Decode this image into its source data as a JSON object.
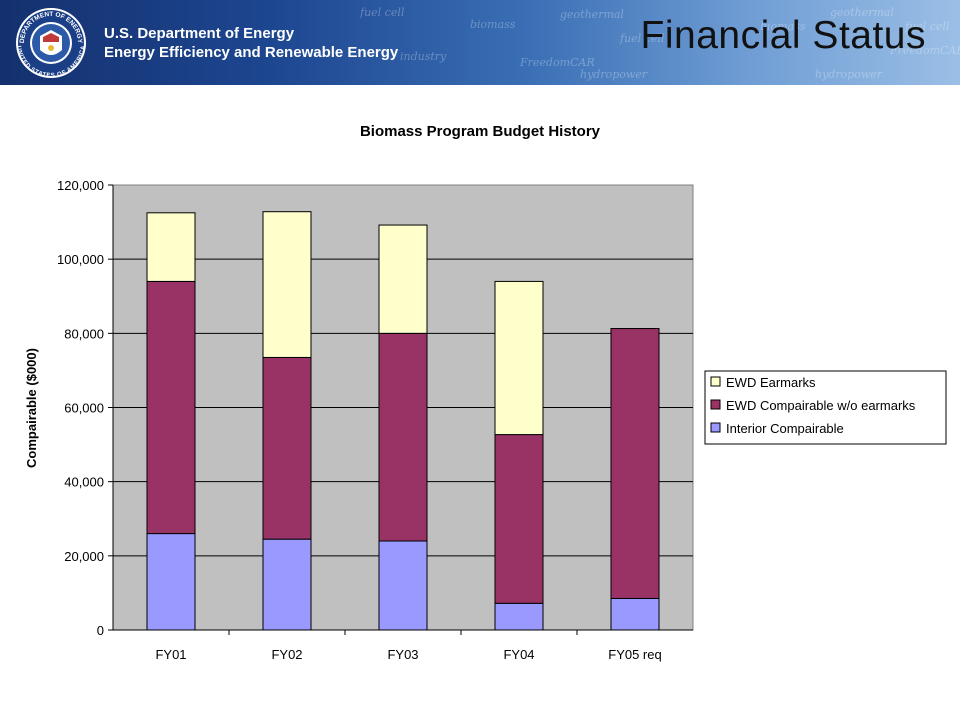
{
  "header": {
    "org_line1": "U.S. Department of Energy",
    "org_line2": "Energy Efficiency and Renewable Energy",
    "slide_title": "Financial Status",
    "seal_text_top": "DEPARTMENT OF ENERGY",
    "seal_text_bottom": "UNITED STATES OF AMERICA",
    "watermarks": [
      "fuel cell",
      "industry",
      "biomass",
      "geothermal",
      "FreedomCAR",
      "hydropower",
      "fuel cell",
      "biomass",
      "geothermal",
      "FreedomCAR",
      "hydropower",
      "fuel cell"
    ],
    "banner_colors": [
      "#14306e",
      "#9bbfe6"
    ]
  },
  "chart_data": {
    "type": "bar",
    "stacked": true,
    "title": "Biomass Program Budget History",
    "xlabel": "",
    "ylabel": "Compairable ($000)",
    "categories": [
      "FY01",
      "FY02",
      "FY03",
      "FY04",
      "FY05 req"
    ],
    "ylim": [
      0,
      120000
    ],
    "yticks": [
      0,
      20000,
      40000,
      60000,
      80000,
      100000,
      120000
    ],
    "ytick_labels": [
      "0",
      "20,000",
      "40,000",
      "60,000",
      "80,000",
      "100,000",
      "120,000"
    ],
    "series": [
      {
        "name": "Interior Compairable",
        "color": "#9999ff",
        "values": [
          26000,
          24500,
          24000,
          7200,
          8500
        ]
      },
      {
        "name": "EWD Compairable w/o earmarks",
        "color": "#993366",
        "values": [
          68000,
          49000,
          56000,
          45500,
          72800
        ]
      },
      {
        "name": "EWD Earmarks",
        "color": "#ffffcc",
        "values": [
          18500,
          39300,
          29200,
          41300,
          0
        ]
      }
    ],
    "legend_order": [
      2,
      1,
      0
    ],
    "legend_position": "right",
    "grid": true,
    "plot_background": "#c0c0c0"
  }
}
